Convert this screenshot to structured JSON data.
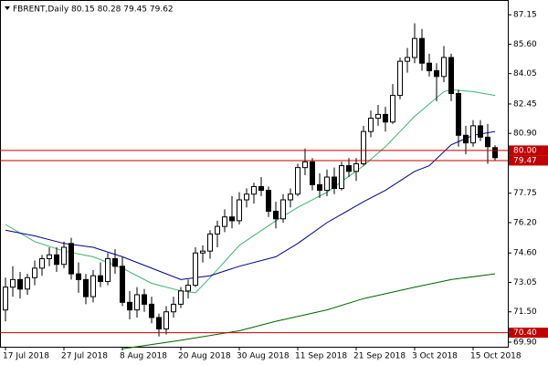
{
  "chart_data": {
    "type": "candlestick",
    "title": "FBRENT,Daily 80.15 80.28 79.45 79.62",
    "categories": [
      "17 Jul 2018",
      null,
      null,
      null,
      null,
      null,
      null,
      null,
      "27 Jul 2018",
      null,
      null,
      null,
      null,
      null,
      null,
      null,
      "8 Aug 2018",
      null,
      null,
      null,
      null,
      null,
      null,
      null,
      "20 Aug 2018",
      null,
      null,
      null,
      null,
      null,
      null,
      null,
      "30 Aug 2018",
      null,
      null,
      null,
      null,
      null,
      null,
      null,
      "11 Sep 2018",
      null,
      null,
      null,
      null,
      null,
      null,
      null,
      "21 Sep 2018",
      null,
      null,
      null,
      null,
      null,
      null,
      null,
      "3 Oct 2018",
      null,
      null,
      null,
      null,
      null,
      null,
      null,
      "15 Oct 2018",
      null,
      null,
      null
    ],
    "open": [
      71.6,
      72.8,
      73.2,
      72.7,
      73.3,
      73.8,
      74.3,
      74.5,
      74.0,
      75.1,
      73.5,
      73.2,
      72.3,
      73.4,
      73.1,
      74.3,
      73.9,
      72.0,
      71.6,
      72.4,
      71.9,
      71.2,
      70.6,
      71.5,
      71.9,
      72.6,
      72.9,
      74.6,
      74.7,
      75.6,
      76.0,
      76.5,
      76.3,
      77.4,
      77.7,
      78.1,
      77.9,
      76.8,
      76.4,
      77.4,
      77.7,
      79.1,
      79.4,
      78.2,
      77.9,
      78.6,
      78.0,
      79.2,
      78.9,
      79.3,
      81.0,
      81.7,
      81.9,
      81.5,
      82.9,
      84.7,
      84.9,
      85.9,
      84.6,
      84.2,
      83.9,
      84.9,
      83.0,
      80.8,
      80.4,
      81.3,
      80.7,
      80.15
    ],
    "high": [
      73.3,
      73.9,
      73.6,
      73.5,
      74.2,
      74.5,
      74.9,
      74.9,
      75.2,
      75.4,
      74.1,
      73.5,
      73.7,
      74.1,
      74.6,
      74.8,
      74.4,
      72.6,
      72.8,
      72.7,
      72.3,
      71.4,
      71.8,
      72.3,
      72.8,
      73.2,
      74.9,
      75.0,
      75.8,
      76.3,
      76.9,
      77.6,
      77.8,
      78.0,
      78.3,
      78.6,
      78.1,
      77.3,
      77.7,
      78.0,
      79.3,
      80.1,
      79.6,
      78.8,
      79.0,
      79.1,
      79.4,
      79.6,
      79.6,
      81.3,
      82.1,
      82.4,
      82.3,
      83.5,
      84.9,
      85.4,
      86.7,
      86.4,
      85.1,
      84.6,
      85.5,
      85.1,
      83.2,
      81.3,
      81.6,
      81.6,
      81.4,
      80.28
    ],
    "low": [
      71.0,
      72.3,
      72.2,
      72.4,
      72.9,
      73.4,
      73.9,
      73.6,
      73.8,
      73.2,
      72.5,
      71.9,
      72.0,
      72.8,
      72.9,
      73.5,
      71.8,
      71.1,
      71.2,
      71.5,
      70.9,
      70.2,
      70.3,
      71.2,
      71.7,
      72.2,
      72.8,
      74.1,
      74.3,
      74.9,
      75.7,
      75.9,
      76.1,
      77.0,
      77.2,
      77.6,
      76.5,
      75.9,
      76.2,
      77.0,
      77.6,
      78.7,
      77.9,
      77.5,
      77.6,
      77.7,
      77.9,
      78.6,
      78.4,
      79.2,
      80.7,
      81.3,
      81.0,
      81.4,
      82.7,
      84.1,
      84.6,
      84.2,
      83.9,
      82.6,
      83.6,
      82.6,
      80.2,
      79.8,
      80.2,
      80.5,
      79.3,
      79.45
    ],
    "close": [
      72.8,
      73.2,
      72.7,
      73.3,
      73.8,
      74.3,
      74.5,
      74.0,
      74.9,
      73.5,
      73.2,
      72.3,
      73.4,
      73.1,
      74.3,
      73.9,
      72.0,
      71.6,
      72.4,
      71.9,
      71.2,
      70.6,
      71.5,
      71.9,
      72.6,
      72.9,
      74.6,
      74.7,
      75.6,
      76.0,
      76.5,
      76.3,
      77.4,
      77.7,
      78.1,
      77.9,
      76.8,
      76.4,
      77.4,
      77.7,
      79.1,
      79.4,
      78.2,
      77.9,
      78.6,
      78.0,
      79.2,
      78.9,
      79.3,
      81.0,
      81.7,
      81.9,
      81.5,
      82.9,
      84.7,
      84.9,
      85.9,
      84.6,
      84.2,
      83.9,
      84.9,
      83.0,
      80.8,
      80.4,
      81.3,
      80.7,
      80.2,
      79.62
    ],
    "up_color": "#ffffff",
    "down_color": "#000000",
    "overlays": [
      {
        "color": "#3cb371",
        "x": [
          0,
          4,
          8,
          12,
          16,
          20,
          24,
          26,
          28,
          32,
          37,
          40,
          44,
          49,
          52,
          56,
          60,
          61,
          64,
          67
        ],
        "values": [
          76.1,
          75.2,
          74.7,
          74.4,
          73.8,
          73.0,
          72.6,
          72.5,
          73.3,
          75.0,
          76.3,
          77.0,
          77.8,
          79.2,
          80.2,
          81.8,
          83.1,
          83.2,
          83.1,
          82.9
        ]
      },
      {
        "color": "#00008b",
        "x": [
          0,
          4,
          8,
          12,
          16,
          20,
          24,
          28,
          32,
          37,
          40,
          44,
          49,
          52,
          56,
          58,
          61,
          64,
          67
        ],
        "values": [
          75.8,
          75.5,
          75.1,
          74.9,
          74.4,
          73.8,
          73.2,
          73.4,
          73.9,
          74.4,
          75.1,
          76.2,
          77.3,
          77.9,
          78.9,
          79.2,
          80.3,
          80.8,
          81.0
        ]
      },
      {
        "color": "#006400",
        "x": [
          16,
          24,
          32,
          37,
          44,
          49,
          56,
          61,
          67
        ],
        "values": [
          69.55,
          70.0,
          70.5,
          71.0,
          71.6,
          72.2,
          72.8,
          73.2,
          73.5
        ]
      }
    ],
    "levels": [
      {
        "value": 80,
        "label": "80.00",
        "color": "#c00000"
      },
      {
        "value": 79.47,
        "label": "79.47",
        "color": "#c00000"
      },
      {
        "value": 70.4,
        "label": "70.40",
        "color": "#c00000"
      }
    ],
    "ylim": [
      69.66,
      87.88
    ],
    "yticks": [
      87.15,
      {
        "value": 85.6,
        "label": "85.60"
      },
      84.05,
      82.45,
      {
        "value": 80.9,
        "label": "80.90"
      },
      79.35,
      77.75,
      {
        "value": 76.2,
        "label": "76.20"
      },
      {
        "value": 74.6,
        "label": "74.60"
      },
      73.05,
      {
        "value": 71.5,
        "label": "71.50"
      },
      {
        "value": 69.9,
        "label": "69.90"
      }
    ]
  }
}
